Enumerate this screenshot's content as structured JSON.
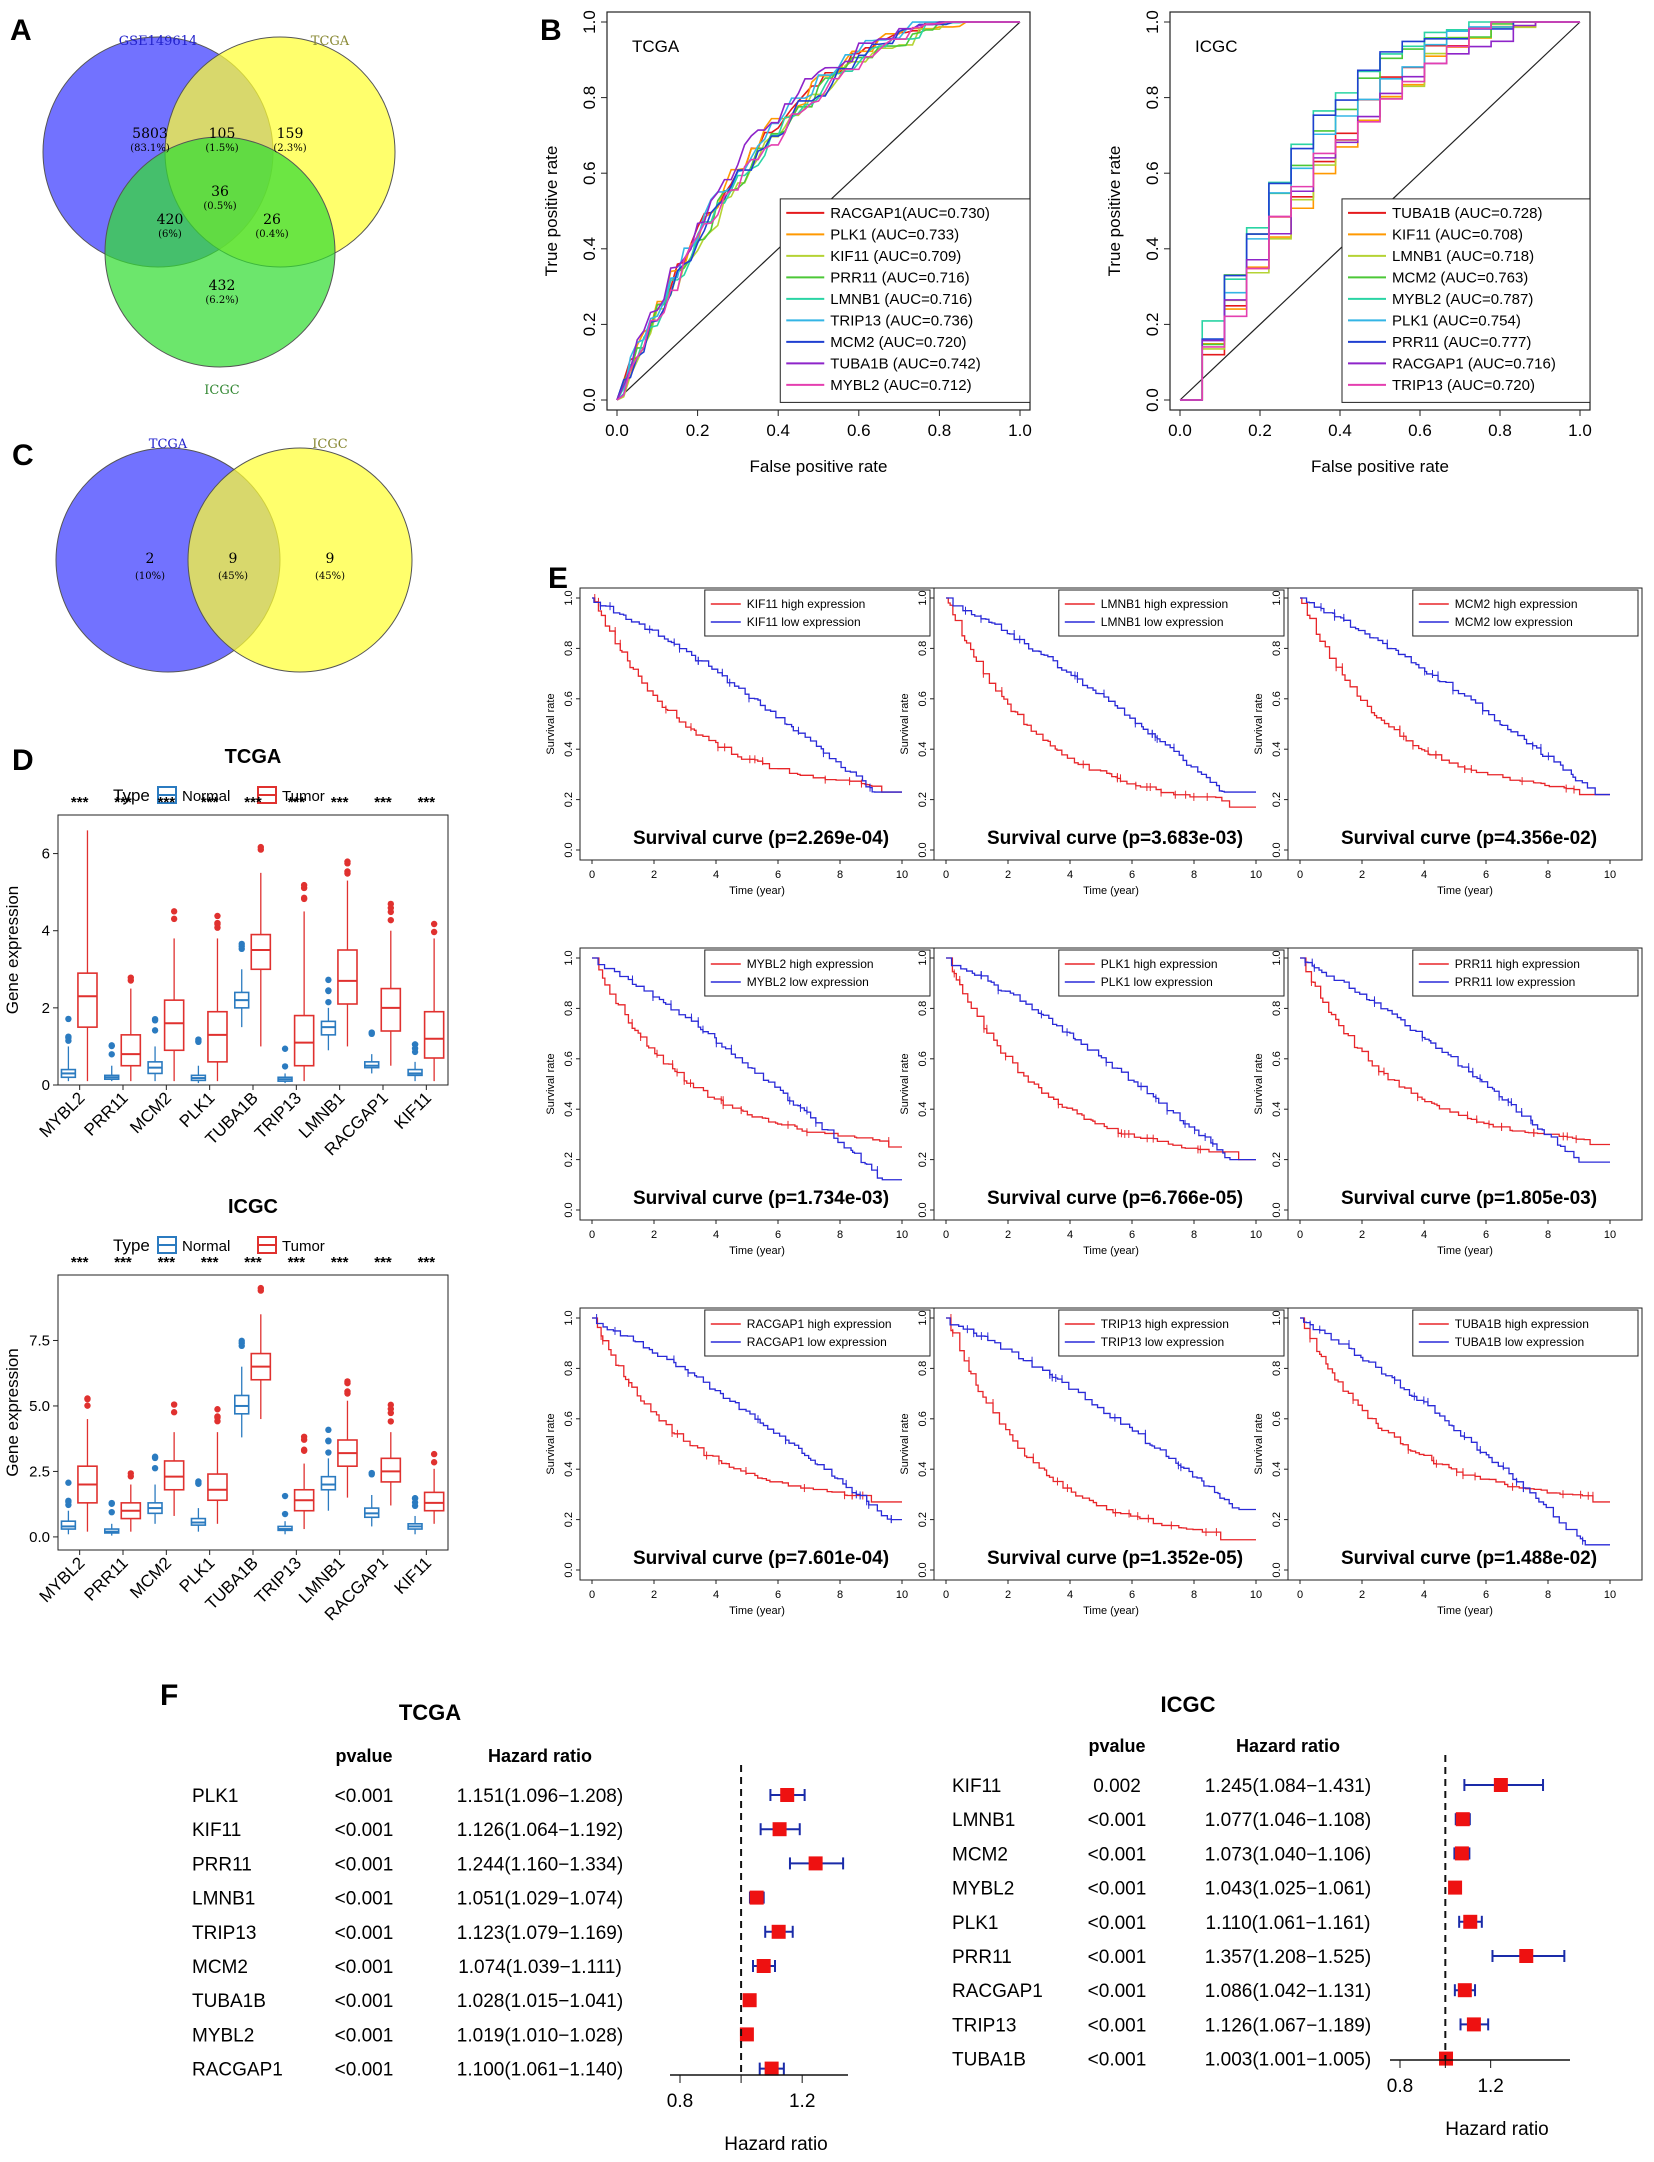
{
  "panel_labels": [
    "A",
    "B",
    "C",
    "D",
    "E",
    "F"
  ],
  "venn_a": {
    "sets": [
      "GSE149614",
      "TCGA",
      "ICGC"
    ],
    "set_colors": [
      "#3b3bff",
      "#ffff33",
      "#33dd33"
    ],
    "regions": [
      {
        "n": "5803",
        "p": "(83.1%)"
      },
      {
        "n": "105",
        "p": "(1.5%)"
      },
      {
        "n": "159",
        "p": "(2.3%)"
      },
      {
        "n": "36",
        "p": "(0.5%)"
      },
      {
        "n": "420",
        "p": "(6%)"
      },
      {
        "n": "26",
        "p": "(0.4%)"
      },
      {
        "n": "432",
        "p": "(6.2%)"
      }
    ]
  },
  "venn_c": {
    "sets": [
      "TCGA",
      "ICGC"
    ],
    "regions": [
      {
        "n": "2",
        "p": "(10%)"
      },
      {
        "n": "9",
        "p": "(45%)"
      },
      {
        "n": "9",
        "p": "(45%)"
      }
    ]
  },
  "chart_data": [
    {
      "id": "roc_tcga",
      "type": "line",
      "title": "TCGA",
      "xlabel": "False positive rate",
      "ylabel": "True positive rate",
      "xlim": [
        0,
        1
      ],
      "ylim": [
        0,
        1
      ],
      "ticks": [
        "0.0",
        "0.2",
        "0.4",
        "0.6",
        "0.8",
        "1.0"
      ],
      "series": [
        {
          "name": "RACGAP1",
          "auc": "0.730",
          "label": "RACGAP1(AUC=0.730)",
          "color": "#e41a1c"
        },
        {
          "name": "PLK1",
          "auc": "0.733",
          "label": "PLK1 (AUC=0.733)",
          "color": "#ff9900"
        },
        {
          "name": "KIF11",
          "auc": "0.709",
          "label": "KIF11 (AUC=0.709)",
          "color": "#b5d334"
        },
        {
          "name": "PRR11",
          "auc": "0.716",
          "label": "PRR11 (AUC=0.716)",
          "color": "#4cc837"
        },
        {
          "name": "LMNB1",
          "auc": "0.716",
          "label": "LMNB1 (AUC=0.716)",
          "color": "#2ad4a4"
        },
        {
          "name": "TRIP13",
          "auc": "0.736",
          "label": "TRIP13 (AUC=0.736)",
          "color": "#33b5e5"
        },
        {
          "name": "MCM2",
          "auc": "0.720",
          "label": "MCM2 (AUC=0.720)",
          "color": "#1f3fd1"
        },
        {
          "name": "TUBA1B",
          "auc": "0.742",
          "label": "TUBA1B (AUC=0.742)",
          "color": "#8e24c9"
        },
        {
          "name": "MYBL2",
          "auc": "0.712",
          "label": "MYBL2 (AUC=0.712)",
          "color": "#e43fb0"
        }
      ]
    },
    {
      "id": "roc_icgc",
      "type": "line",
      "title": "ICGC",
      "xlabel": "False positive rate",
      "ylabel": "True positive rate",
      "xlim": [
        0,
        1
      ],
      "ylim": [
        0,
        1
      ],
      "ticks": [
        "0.0",
        "0.2",
        "0.4",
        "0.6",
        "0.8",
        "1.0"
      ],
      "series": [
        {
          "name": "TUBA1B",
          "auc": "0.728",
          "label": "TUBA1B (AUC=0.728)",
          "color": "#e41a1c"
        },
        {
          "name": "KIF11",
          "auc": "0.708",
          "label": "KIF11 (AUC=0.708)",
          "color": "#ff9900"
        },
        {
          "name": "LMNB1",
          "auc": "0.718",
          "label": "LMNB1 (AUC=0.718)",
          "color": "#b5d334"
        },
        {
          "name": "MCM2",
          "auc": "0.763",
          "label": "MCM2 (AUC=0.763)",
          "color": "#4cc837"
        },
        {
          "name": "MYBL2",
          "auc": "0.787",
          "label": "MYBL2 (AUC=0.787)",
          "color": "#2ad4a4"
        },
        {
          "name": "PLK1",
          "auc": "0.754",
          "label": "PLK1 (AUC=0.754)",
          "color": "#33b5e5"
        },
        {
          "name": "PRR11",
          "auc": "0.777",
          "label": "PRR11 (AUC=0.777)",
          "color": "#1f3fd1"
        },
        {
          "name": "RACGAP1",
          "auc": "0.716",
          "label": "RACGAP1 (AUC=0.716)",
          "color": "#8e24c9"
        },
        {
          "name": "TRIP13",
          "auc": "0.720",
          "label": "TRIP13 (AUC=0.720)",
          "color": "#e43fb0"
        }
      ]
    },
    {
      "id": "box_tcga",
      "type": "box",
      "title": "TCGA",
      "legend_title": "Type",
      "groups": [
        "Normal",
        "Tumor"
      ],
      "group_colors": [
        "#2b7bc0",
        "#e0312f"
      ],
      "categories": [
        "MYBL2",
        "PRR11",
        "MCM2",
        "PLK1",
        "TUBA1B",
        "TRIP13",
        "LMNB1",
        "RACGAP1",
        "KIF11"
      ],
      "significance": "***",
      "ylabel": "Gene expression",
      "ylim": [
        0,
        7
      ],
      "yticks": [
        0,
        2,
        4,
        6
      ],
      "normal": [
        [
          0.1,
          0.2,
          0.3,
          0.4,
          1.0
        ],
        [
          0.1,
          0.15,
          0.2,
          0.25,
          0.5
        ],
        [
          0.1,
          0.3,
          0.45,
          0.6,
          1.0
        ],
        [
          0.05,
          0.12,
          0.18,
          0.25,
          0.5
        ],
        [
          1.5,
          2.0,
          2.2,
          2.4,
          3.0
        ],
        [
          0.05,
          0.1,
          0.15,
          0.2,
          0.3
        ],
        [
          0.9,
          1.3,
          1.5,
          1.65,
          2.0
        ],
        [
          0.3,
          0.45,
          0.5,
          0.6,
          0.8
        ],
        [
          0.1,
          0.25,
          0.3,
          0.4,
          0.6
        ]
      ],
      "tumor": [
        [
          0.1,
          1.5,
          2.3,
          2.9,
          6.6
        ],
        [
          0.1,
          0.5,
          0.8,
          1.3,
          2.5
        ],
        [
          0.1,
          0.9,
          1.6,
          2.2,
          3.8
        ],
        [
          0.1,
          0.6,
          1.3,
          1.9,
          3.8
        ],
        [
          1.0,
          3.0,
          3.5,
          3.9,
          5.5
        ],
        [
          0.1,
          0.5,
          1.1,
          1.8,
          4.5
        ],
        [
          1.0,
          2.1,
          2.7,
          3.5,
          5.3
        ],
        [
          0.5,
          1.4,
          2.0,
          2.5,
          4.0
        ],
        [
          0.1,
          0.7,
          1.2,
          1.9,
          3.8
        ]
      ]
    },
    {
      "id": "box_icgc",
      "type": "box",
      "title": "ICGC",
      "legend_title": "Type",
      "groups": [
        "Normal",
        "Tumor"
      ],
      "group_colors": [
        "#2b7bc0",
        "#e0312f"
      ],
      "categories": [
        "MYBL2",
        "PRR11",
        "MCM2",
        "PLK1",
        "TUBA1B",
        "TRIP13",
        "LMNB1",
        "RACGAP1",
        "KIF11"
      ],
      "significance": "***",
      "ylabel": "Gene expression",
      "ylim": [
        -0.5,
        10
      ],
      "yticks": [
        0.0,
        2.5,
        5.0,
        7.5
      ],
      "ytick_labels": [
        "0.0",
        "2.5",
        "5.0",
        "7.5"
      ],
      "normal": [
        [
          0.1,
          0.3,
          0.4,
          0.6,
          1.0
        ],
        [
          0.05,
          0.15,
          0.2,
          0.3,
          0.5
        ],
        [
          0.5,
          0.9,
          1.1,
          1.3,
          2.0
        ],
        [
          0.2,
          0.45,
          0.55,
          0.7,
          1.1
        ],
        [
          3.8,
          4.7,
          5.0,
          5.4,
          6.5
        ],
        [
          0.1,
          0.25,
          0.3,
          0.4,
          0.6
        ],
        [
          1.0,
          1.8,
          2.0,
          2.3,
          3.0
        ],
        [
          0.4,
          0.75,
          0.9,
          1.1,
          1.6
        ],
        [
          0.1,
          0.3,
          0.4,
          0.5,
          0.8
        ]
      ],
      "tumor": [
        [
          0.2,
          1.3,
          2.0,
          2.7,
          4.5
        ],
        [
          0.2,
          0.7,
          1.0,
          1.3,
          2.0
        ],
        [
          0.8,
          1.8,
          2.3,
          2.9,
          4.0
        ],
        [
          0.5,
          1.4,
          1.8,
          2.4,
          4.0
        ],
        [
          4.5,
          6.0,
          6.5,
          7.0,
          8.5
        ],
        [
          0.3,
          1.0,
          1.4,
          1.8,
          2.8
        ],
        [
          1.5,
          2.7,
          3.2,
          3.7,
          5.2
        ],
        [
          1.2,
          2.1,
          2.5,
          3.0,
          4.0
        ],
        [
          0.5,
          1.0,
          1.3,
          1.7,
          2.6
        ]
      ]
    },
    {
      "id": "km_grid",
      "type": "line",
      "xlabel": "Time (year)",
      "ylabel": "Survival rate",
      "xlim": [
        0,
        10
      ],
      "ylim": [
        0,
        1
      ],
      "xticks": [
        "0",
        "2",
        "4",
        "6",
        "8",
        "10"
      ],
      "yticks": [
        "0.0",
        "0.2",
        "0.4",
        "0.6",
        "0.8",
        "1.0"
      ],
      "high_color": "#e8262a",
      "low_color": "#2a2ad8",
      "panels": [
        {
          "gene": "KIF11",
          "high_label": "KIF11 high expression",
          "low_label": "KIF11 low expression",
          "caption": "Survival curve (p=2.269e-04)",
          "high_end": 0.23,
          "low_end": 0.23
        },
        {
          "gene": "LMNB1",
          "high_label": "LMNB1 high expression",
          "low_label": "LMNB1 low expression",
          "caption": "Survival curve (p=3.683e-03)",
          "high_end": 0.17,
          "low_end": 0.23
        },
        {
          "gene": "MCM2",
          "high_label": "MCM2 high expression",
          "low_label": "MCM2 low expression",
          "caption": "Survival curve (p=4.356e-02)",
          "high_end": 0.22,
          "low_end": 0.22
        },
        {
          "gene": "MYBL2",
          "high_label": "MYBL2 high expression",
          "low_label": "MYBL2 low expression",
          "caption": "Survival curve (p=1.734e-03)",
          "high_end": 0.25,
          "low_end": 0.12
        },
        {
          "gene": "PLK1",
          "high_label": "PLK1 high expression",
          "low_label": "PLK1 low expression",
          "caption": "Survival curve (p=6.766e-05)",
          "high_end": 0.2,
          "low_end": 0.2
        },
        {
          "gene": "PRR11",
          "high_label": "PRR11 high expression",
          "low_label": "PRR11 low expression",
          "caption": "Survival curve (p=1.805e-03)",
          "high_end": 0.26,
          "low_end": 0.19
        },
        {
          "gene": "RACGAP1",
          "high_label": "RACGAP1 high expression",
          "low_label": "RACGAP1 low expression",
          "caption": "Survival curve (p=7.601e-04)",
          "high_end": 0.27,
          "low_end": 0.2
        },
        {
          "gene": "TRIP13",
          "high_label": "TRIP13 high expression",
          "low_label": "TRIP13 low expression",
          "caption": "Survival curve (p=1.352e-05)",
          "high_end": 0.12,
          "low_end": 0.24
        },
        {
          "gene": "TUBA1B",
          "high_label": "TUBA1B high expression",
          "low_label": "TUBA1B low expression",
          "caption": "Survival curve (p=1.488e-02)",
          "high_end": 0.27,
          "low_end": 0.1
        }
      ]
    },
    {
      "id": "forest_tcga",
      "type": "scatter",
      "title": "TCGA",
      "col_pvalue": "pvalue",
      "col_hr": "Hazard ratio",
      "xlabel": "Hazard ratio",
      "xticks": [
        "0.8",
        "1.2"
      ],
      "xtick_values": [
        0.8,
        1.2
      ],
      "xlim": [
        0.8,
        1.35
      ],
      "rows": [
        {
          "gene": "PLK1",
          "p": "<0.001",
          "hr_text": "1.151(1.096−1.208)",
          "hr": 1.151,
          "lo": 1.096,
          "hi": 1.208
        },
        {
          "gene": "KIF11",
          "p": "<0.001",
          "hr_text": "1.126(1.064−1.192)",
          "hr": 1.126,
          "lo": 1.064,
          "hi": 1.192
        },
        {
          "gene": "PRR11",
          "p": "<0.001",
          "hr_text": "1.244(1.160−1.334)",
          "hr": 1.244,
          "lo": 1.16,
          "hi": 1.334
        },
        {
          "gene": "LMNB1",
          "p": "<0.001",
          "hr_text": "1.051(1.029−1.074)",
          "hr": 1.051,
          "lo": 1.029,
          "hi": 1.074
        },
        {
          "gene": "TRIP13",
          "p": "<0.001",
          "hr_text": "1.123(1.079−1.169)",
          "hr": 1.123,
          "lo": 1.079,
          "hi": 1.169
        },
        {
          "gene": "MCM2",
          "p": "<0.001",
          "hr_text": "1.074(1.039−1.111)",
          "hr": 1.074,
          "lo": 1.039,
          "hi": 1.111
        },
        {
          "gene": "TUBA1B",
          "p": "<0.001",
          "hr_text": "1.028(1.015−1.041)",
          "hr": 1.028,
          "lo": 1.015,
          "hi": 1.041
        },
        {
          "gene": "MYBL2",
          "p": "<0.001",
          "hr_text": "1.019(1.010−1.028)",
          "hr": 1.019,
          "lo": 1.01,
          "hi": 1.028
        },
        {
          "gene": "RACGAP1",
          "p": "<0.001",
          "hr_text": "1.100(1.061−1.140)",
          "hr": 1.1,
          "lo": 1.061,
          "hi": 1.14
        }
      ]
    },
    {
      "id": "forest_icgc",
      "type": "scatter",
      "title": "ICGC",
      "col_pvalue": "pvalue",
      "col_hr": "Hazard ratio",
      "xlabel": "Hazard ratio",
      "xticks": [
        "0.8",
        "1.2"
      ],
      "xtick_values": [
        0.8,
        1.2
      ],
      "xlim": [
        0.8,
        1.55
      ],
      "rows": [
        {
          "gene": "KIF11",
          "p": "0.002",
          "hr_text": "1.245(1.084−1.431)",
          "hr": 1.245,
          "lo": 1.084,
          "hi": 1.431
        },
        {
          "gene": "LMNB1",
          "p": "<0.001",
          "hr_text": "1.077(1.046−1.108)",
          "hr": 1.077,
          "lo": 1.046,
          "hi": 1.108
        },
        {
          "gene": "MCM2",
          "p": "<0.001",
          "hr_text": "1.073(1.040−1.106)",
          "hr": 1.073,
          "lo": 1.04,
          "hi": 1.106
        },
        {
          "gene": "MYBL2",
          "p": "<0.001",
          "hr_text": "1.043(1.025−1.061)",
          "hr": 1.043,
          "lo": 1.025,
          "hi": 1.061
        },
        {
          "gene": "PLK1",
          "p": "<0.001",
          "hr_text": "1.110(1.061−1.161)",
          "hr": 1.11,
          "lo": 1.061,
          "hi": 1.161
        },
        {
          "gene": "PRR11",
          "p": "<0.001",
          "hr_text": "1.357(1.208−1.525)",
          "hr": 1.357,
          "lo": 1.208,
          "hi": 1.525
        },
        {
          "gene": "RACGAP1",
          "p": "<0.001",
          "hr_text": "1.086(1.042−1.131)",
          "hr": 1.086,
          "lo": 1.042,
          "hi": 1.131
        },
        {
          "gene": "TRIP13",
          "p": "<0.001",
          "hr_text": "1.126(1.067−1.189)",
          "hr": 1.126,
          "lo": 1.067,
          "hi": 1.189
        },
        {
          "gene": "TUBA1B",
          "p": "<0.001",
          "hr_text": "1.003(1.001−1.005)",
          "hr": 1.003,
          "lo": 1.001,
          "hi": 1.005
        }
      ]
    }
  ]
}
